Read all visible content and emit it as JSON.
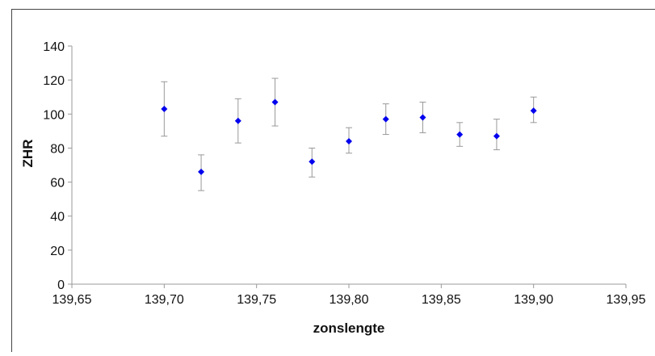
{
  "chart_data": {
    "type": "scatter",
    "title": "",
    "xlabel": "zonslengte",
    "ylabel": "ZHR",
    "xlim": [
      139.65,
      139.95
    ],
    "ylim": [
      0,
      140
    ],
    "x_ticks": [
      "139,65",
      "139,70",
      "139,75",
      "139,80",
      "139,85",
      "139,90",
      "139,95"
    ],
    "x_tick_values": [
      139.65,
      139.7,
      139.75,
      139.8,
      139.85,
      139.9,
      139.95
    ],
    "y_ticks": [
      "0",
      "20",
      "40",
      "60",
      "80",
      "100",
      "120",
      "140"
    ],
    "y_tick_values": [
      0,
      20,
      40,
      60,
      80,
      100,
      120,
      140
    ],
    "grid": false,
    "legend": "none",
    "marker": "diamond",
    "colors": {
      "marker": "#0000ee",
      "error_bar": "#999999",
      "axis": "#999999",
      "frame": "#444444",
      "text": "#111111"
    },
    "series": [
      {
        "points": [
          {
            "x": 139.7,
            "y": 103,
            "err_low": 87,
            "err_high": 119
          },
          {
            "x": 139.72,
            "y": 66,
            "err_low": 55,
            "err_high": 76
          },
          {
            "x": 139.74,
            "y": 96,
            "err_low": 83,
            "err_high": 109
          },
          {
            "x": 139.76,
            "y": 107,
            "err_low": 93,
            "err_high": 121
          },
          {
            "x": 139.78,
            "y": 72,
            "err_low": 63,
            "err_high": 80
          },
          {
            "x": 139.8,
            "y": 84,
            "err_low": 77,
            "err_high": 92
          },
          {
            "x": 139.82,
            "y": 97,
            "err_low": 88,
            "err_high": 106
          },
          {
            "x": 139.84,
            "y": 98,
            "err_low": 89,
            "err_high": 107
          },
          {
            "x": 139.86,
            "y": 88,
            "err_low": 81,
            "err_high": 95
          },
          {
            "x": 139.88,
            "y": 87,
            "err_low": 79,
            "err_high": 97
          },
          {
            "x": 139.9,
            "y": 102,
            "err_low": 95,
            "err_high": 110
          }
        ]
      }
    ]
  }
}
